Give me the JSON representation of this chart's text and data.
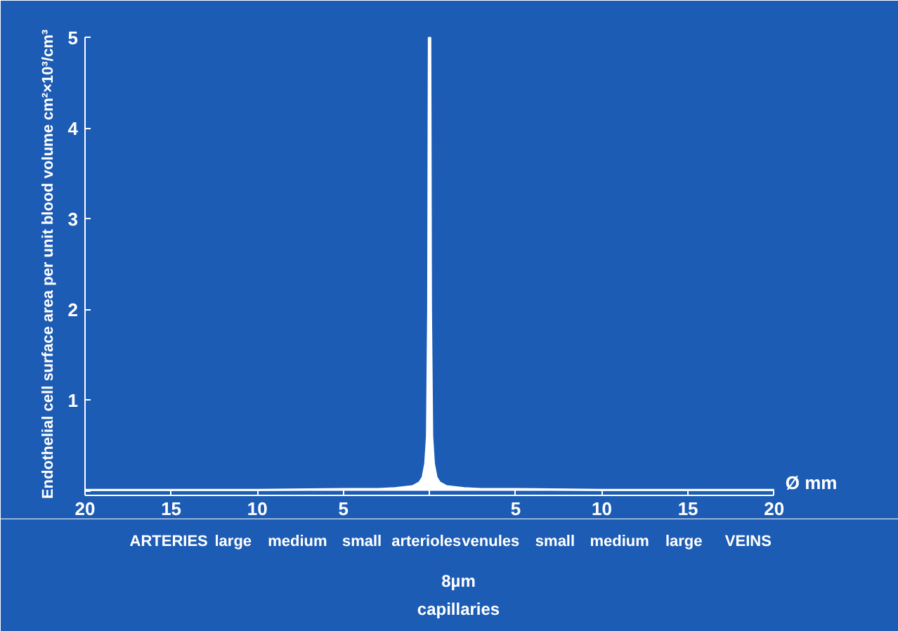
{
  "chart_data": {
    "type": "area",
    "xlabel": "Ø mm",
    "ylabel": "Endothelial cell surface area per unit blood volume  cm²×10³/cm³",
    "x": [
      -20,
      -15,
      -10,
      -5,
      -3,
      -2,
      -1,
      -0.6,
      -0.4,
      -0.25,
      -0.15,
      -0.08,
      -0.04,
      0,
      0.04,
      0.08,
      0.15,
      0.25,
      0.4,
      0.6,
      1,
      2,
      3,
      5,
      10,
      15,
      20
    ],
    "series": [
      {
        "color": "#ffffff",
        "values": [
          0.01,
          0.01,
          0.01,
          0.02,
          0.02,
          0.03,
          0.05,
          0.09,
          0.15,
          0.3,
          0.6,
          2,
          5,
          5,
          5,
          2,
          0.6,
          0.3,
          0.15,
          0.09,
          0.05,
          0.03,
          0.02,
          0.02,
          0.01,
          0.01,
          0.01
        ]
      }
    ],
    "xlim": [
      -20,
      20
    ],
    "xticks": [
      {
        "value": -20,
        "label": "20"
      },
      {
        "value": -15,
        "label": "15"
      },
      {
        "value": -10,
        "label": "10"
      },
      {
        "value": -5,
        "label": "5"
      },
      {
        "value": 0,
        "label": null
      },
      {
        "value": 5,
        "label": "5"
      },
      {
        "value": 10,
        "label": "10"
      },
      {
        "value": 15,
        "label": "15"
      },
      {
        "value": 20,
        "label": "20"
      }
    ],
    "ylim": [
      0,
      5
    ],
    "yticks": [
      {
        "value": 0,
        "label": null
      },
      1,
      2,
      3,
      4,
      5
    ],
    "grid": false,
    "annotations": [
      "ARTERIES",
      "large",
      "medium",
      "small",
      "arterioles",
      "venules",
      "small",
      "medium",
      "large",
      "VEINS",
      "8µm",
      "capillaries"
    ]
  }
}
